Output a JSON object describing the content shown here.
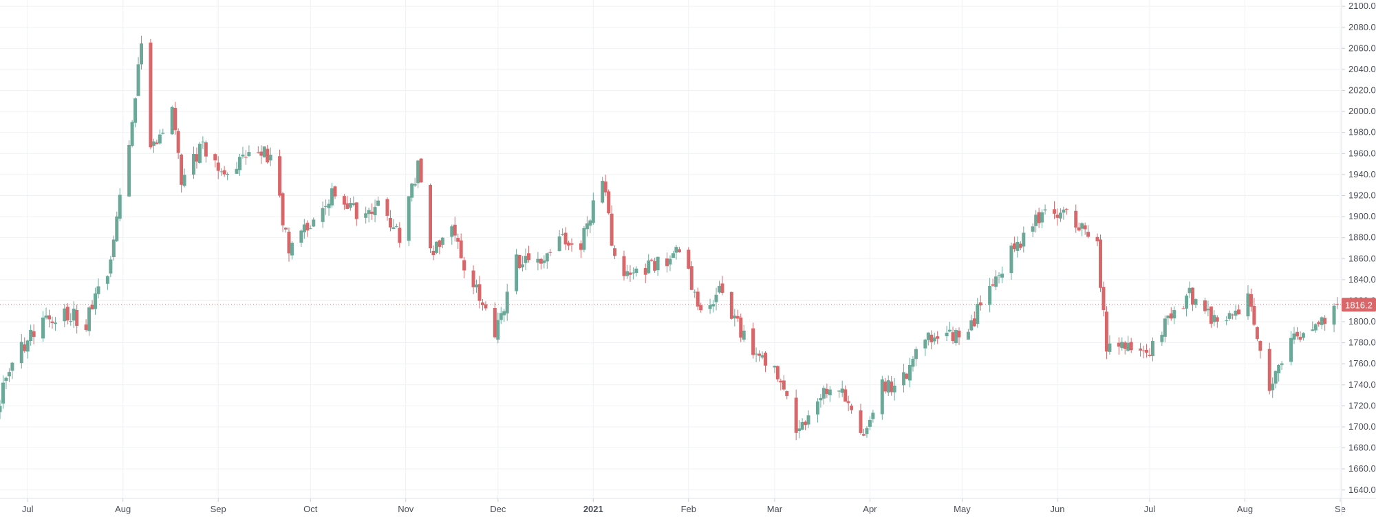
{
  "chart_data": {
    "type": "candlestick",
    "title": "",
    "xlabel": "",
    "ylabel": "",
    "ylim": [
      1632,
      2106
    ],
    "y_ticks": [
      "2100.0",
      "2080.0",
      "2060.0",
      "2040.0",
      "2020.0",
      "2000.0",
      "1980.0",
      "1960.0",
      "1940.0",
      "1920.0",
      "1900.0",
      "1880.0",
      "1860.0",
      "1840.0",
      "1820.0",
      "1800.0",
      "1780.0",
      "1760.0",
      "1740.0",
      "1720.0",
      "1700.0",
      "1680.0",
      "1660.0",
      "1640.0"
    ],
    "x_ticks": [
      {
        "label": "Jul",
        "date": "2020-07-01"
      },
      {
        "label": "Aug",
        "date": "2020-08-01"
      },
      {
        "label": "Sep",
        "date": "2020-09-01"
      },
      {
        "label": "Oct",
        "date": "2020-10-01"
      },
      {
        "label": "Nov",
        "date": "2020-11-01"
      },
      {
        "label": "Dec",
        "date": "2020-12-01"
      },
      {
        "label": "2021",
        "date": "2021-01-01",
        "bold": true
      },
      {
        "label": "Feb",
        "date": "2021-02-01"
      },
      {
        "label": "Mar",
        "date": "2021-03-01"
      },
      {
        "label": "Apr",
        "date": "2021-04-01"
      },
      {
        "label": "May",
        "date": "2021-05-01"
      },
      {
        "label": "Jun",
        "date": "2021-06-01"
      },
      {
        "label": "Jul",
        "date": "2021-07-01"
      },
      {
        "label": "Aug",
        "date": "2021-08-01"
      },
      {
        "label": "Se",
        "date": "2021-09-01"
      }
    ],
    "x_range": [
      "2020-06-22",
      "2021-09-01"
    ],
    "last_price": 1816.2,
    "last_price_label": "1816.2",
    "up_color": "#6BA898",
    "down_color": "#D9676A",
    "price_line_color": "#D9676A",
    "grid": true,
    "path": [
      [
        "2020-06-22",
        1728
      ],
      [
        "2020-06-29",
        1775
      ],
      [
        "2020-07-06",
        1800
      ],
      [
        "2020-07-13",
        1808
      ],
      [
        "2020-07-20",
        1800
      ],
      [
        "2020-07-27",
        1845
      ],
      [
        "2020-08-03",
        1965
      ],
      [
        "2020-08-07",
        2072
      ],
      [
        "2020-08-10",
        1958
      ],
      [
        "2020-08-17",
        2005
      ],
      [
        "2020-08-20",
        1930
      ],
      [
        "2020-08-27",
        1970
      ],
      [
        "2020-09-02",
        1940
      ],
      [
        "2020-09-10",
        1955
      ],
      [
        "2020-09-18",
        1960
      ],
      [
        "2020-09-24",
        1868
      ],
      [
        "2020-10-02",
        1900
      ],
      [
        "2020-10-09",
        1925
      ],
      [
        "2020-10-16",
        1905
      ],
      [
        "2020-10-23",
        1908
      ],
      [
        "2020-10-30",
        1880
      ],
      [
        "2020-11-05",
        1950
      ],
      [
        "2020-11-09",
        1865
      ],
      [
        "2020-11-16",
        1885
      ],
      [
        "2020-11-23",
        1835
      ],
      [
        "2020-11-30",
        1785
      ],
      [
        "2020-12-07",
        1858
      ],
      [
        "2020-12-14",
        1860
      ],
      [
        "2020-12-21",
        1878
      ],
      [
        "2020-12-28",
        1875
      ],
      [
        "2021-01-04",
        1940
      ],
      [
        "2021-01-08",
        1855
      ],
      [
        "2021-01-15",
        1845
      ],
      [
        "2021-01-22",
        1855
      ],
      [
        "2021-01-29",
        1865
      ],
      [
        "2021-02-05",
        1815
      ],
      [
        "2021-02-12",
        1830
      ],
      [
        "2021-02-19",
        1785
      ],
      [
        "2021-02-26",
        1760
      ],
      [
        "2021-03-03",
        1745
      ],
      [
        "2021-03-08",
        1690
      ],
      [
        "2021-03-15",
        1730
      ],
      [
        "2021-03-22",
        1735
      ],
      [
        "2021-03-30",
        1690
      ],
      [
        "2021-04-05",
        1738
      ],
      [
        "2021-04-12",
        1745
      ],
      [
        "2021-04-19",
        1783
      ],
      [
        "2021-04-26",
        1785
      ],
      [
        "2021-05-03",
        1788
      ],
      [
        "2021-05-10",
        1838
      ],
      [
        "2021-05-17",
        1865
      ],
      [
        "2021-05-24",
        1895
      ],
      [
        "2021-05-31",
        1905
      ],
      [
        "2021-06-07",
        1895
      ],
      [
        "2021-06-14",
        1870
      ],
      [
        "2021-06-17",
        1775
      ],
      [
        "2021-06-24",
        1780
      ],
      [
        "2021-06-30",
        1770
      ],
      [
        "2021-07-07",
        1805
      ],
      [
        "2021-07-14",
        1825
      ],
      [
        "2021-07-21",
        1805
      ],
      [
        "2021-07-28",
        1800
      ],
      [
        "2021-08-02",
        1828
      ],
      [
        "2021-08-06",
        1765
      ],
      [
        "2021-08-09",
        1732
      ],
      [
        "2021-08-16",
        1780
      ],
      [
        "2021-08-23",
        1790
      ],
      [
        "2021-08-27",
        1800
      ],
      [
        "2021-08-31",
        1816
      ]
    ]
  }
}
